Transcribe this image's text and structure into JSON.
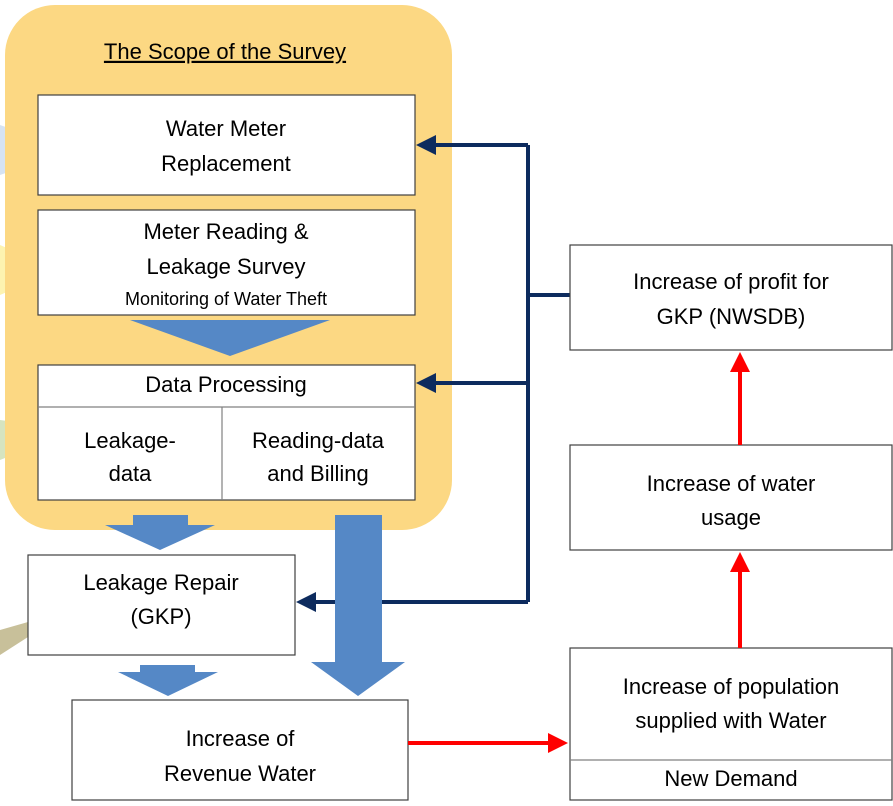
{
  "scope_title": "The Scope of the Survey",
  "nodes": [
    {
      "lines": [
        "Water Meter",
        "Replacement"
      ]
    },
    {
      "lines": [
        "Meter Reading &",
        "Leakage Survey",
        "Monitoring of Water Theft"
      ]
    },
    {
      "lines": [
        "Data Processing"
      ],
      "cells": [
        [
          "Leakage-",
          "data"
        ],
        [
          "Reading-data",
          "and Billing"
        ]
      ]
    },
    {
      "lines": [
        "Leakage Repair",
        "(GKP)"
      ]
    },
    {
      "lines": [
        "Increase of",
        "Revenue Water"
      ]
    },
    {
      "lines": [
        "Increase of profit for",
        "GKP (NWSDB)"
      ]
    },
    {
      "lines": [
        "Increase of water",
        "usage"
      ]
    },
    {
      "lines": [
        "Increase of population",
        "supplied with Water"
      ],
      "footer": "New Demand"
    }
  ]
}
